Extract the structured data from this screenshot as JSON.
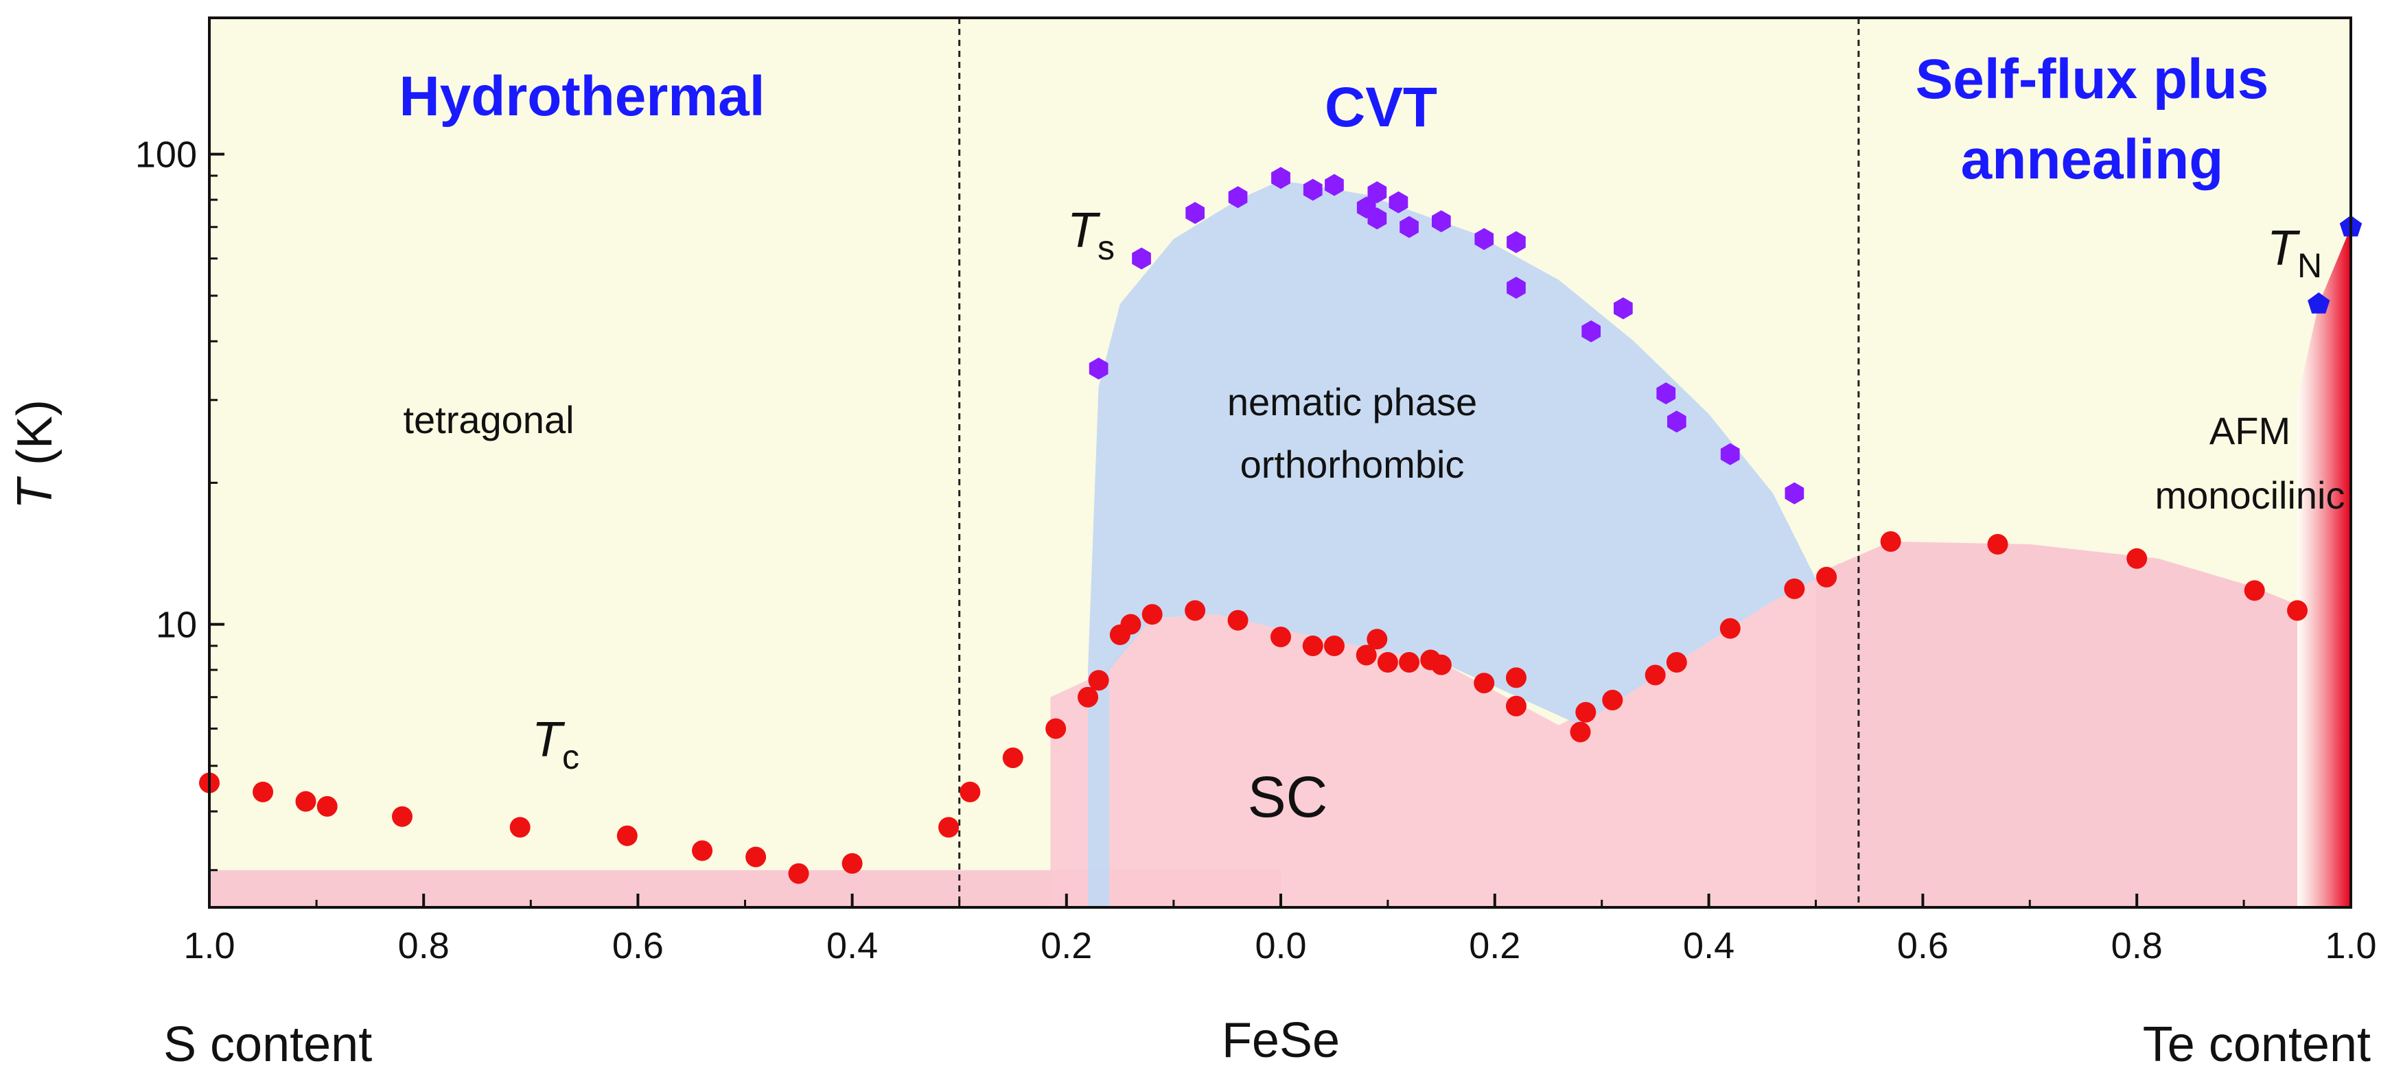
{
  "chart_data": {
    "type": "scatter",
    "y_scale": "log",
    "ylim": [
      2.5,
      195
    ],
    "ylabel": {
      "symbol": "T",
      "unit": " (K)"
    },
    "y_ticks": [
      {
        "value": 10,
        "label": "10"
      },
      {
        "value": 100,
        "label": "100"
      }
    ],
    "segments": [
      {
        "name": "S content",
        "x_label": "S content",
        "from": 1.0,
        "to": 0.0
      },
      {
        "name": "Te content",
        "x_label": "Te content",
        "from": 0.0,
        "to": 1.0
      }
    ],
    "center_label": "FeSe",
    "x_ticks": [
      {
        "segment": "S",
        "value": 1.0,
        "label": "1.0"
      },
      {
        "segment": "S",
        "value": 0.8,
        "label": "0.8"
      },
      {
        "segment": "S",
        "value": 0.6,
        "label": "0.6"
      },
      {
        "segment": "S",
        "value": 0.4,
        "label": "0.4"
      },
      {
        "segment": "S",
        "value": 0.2,
        "label": "0.2"
      },
      {
        "segment": "Te",
        "value": 0.0,
        "label": "0.0"
      },
      {
        "segment": "Te",
        "value": 0.2,
        "label": "0.2"
      },
      {
        "segment": "Te",
        "value": 0.4,
        "label": "0.4"
      },
      {
        "segment": "Te",
        "value": 0.6,
        "label": "0.6"
      },
      {
        "segment": "Te",
        "value": 0.8,
        "label": "0.8"
      },
      {
        "segment": "Te",
        "value": 1.0,
        "label": "1.0"
      }
    ],
    "dividers": [
      {
        "segment": "S",
        "value": 0.3
      },
      {
        "segment": "Te",
        "value": 0.54
      }
    ],
    "methods": [
      {
        "name": "hydrothermal",
        "lines": [
          "Hydrothermal"
        ],
        "color": "#1a1aff"
      },
      {
        "name": "cvt",
        "lines": [
          "CVT"
        ],
        "color": "#1a1aff"
      },
      {
        "name": "self-flux",
        "lines": [
          "Self-flux plus",
          "annealing"
        ],
        "color": "#1a1aff"
      }
    ],
    "phases": [
      {
        "name": "tetragonal",
        "lines": [
          "tetragonal"
        ]
      },
      {
        "name": "nematic",
        "lines": [
          "nematic phase",
          "orthorhombic"
        ]
      },
      {
        "name": "afm",
        "lines": [
          "AFM",
          "monocilinic"
        ]
      }
    ],
    "sc_label": "SC",
    "series": [
      {
        "name": "Tc",
        "label_main": "T",
        "label_sub": "c",
        "color": "#ee1111",
        "marker": "circle",
        "points": [
          {
            "segment": "S",
            "x": 1.0,
            "y": 4.6
          },
          {
            "segment": "S",
            "x": 0.95,
            "y": 4.4
          },
          {
            "segment": "S",
            "x": 0.91,
            "y": 4.2
          },
          {
            "segment": "S",
            "x": 0.89,
            "y": 4.1
          },
          {
            "segment": "S",
            "x": 0.82,
            "y": 3.9
          },
          {
            "segment": "S",
            "x": 0.71,
            "y": 3.7
          },
          {
            "segment": "S",
            "x": 0.61,
            "y": 3.55
          },
          {
            "segment": "S",
            "x": 0.54,
            "y": 3.3
          },
          {
            "segment": "S",
            "x": 0.49,
            "y": 3.2
          },
          {
            "segment": "S",
            "x": 0.45,
            "y": 2.95
          },
          {
            "segment": "S",
            "x": 0.4,
            "y": 3.1
          },
          {
            "segment": "S",
            "x": 0.31,
            "y": 3.7
          },
          {
            "segment": "S",
            "x": 0.29,
            "y": 4.4
          },
          {
            "segment": "S",
            "x": 0.25,
            "y": 5.2
          },
          {
            "segment": "S",
            "x": 0.21,
            "y": 6.0
          },
          {
            "segment": "S",
            "x": 0.18,
            "y": 7.0
          },
          {
            "segment": "S",
            "x": 0.17,
            "y": 7.6
          },
          {
            "segment": "S",
            "x": 0.15,
            "y": 9.5
          },
          {
            "segment": "S",
            "x": 0.14,
            "y": 10.0
          },
          {
            "segment": "S",
            "x": 0.12,
            "y": 10.5
          },
          {
            "segment": "S",
            "x": 0.08,
            "y": 10.7
          },
          {
            "segment": "S",
            "x": 0.04,
            "y": 10.2
          },
          {
            "segment": "Te",
            "x": 0.0,
            "y": 9.4
          },
          {
            "segment": "Te",
            "x": 0.03,
            "y": 9.0
          },
          {
            "segment": "Te",
            "x": 0.05,
            "y": 9.0
          },
          {
            "segment": "Te",
            "x": 0.08,
            "y": 8.6
          },
          {
            "segment": "Te",
            "x": 0.09,
            "y": 9.3
          },
          {
            "segment": "Te",
            "x": 0.1,
            "y": 8.3
          },
          {
            "segment": "Te",
            "x": 0.12,
            "y": 8.3
          },
          {
            "segment": "Te",
            "x": 0.14,
            "y": 8.4
          },
          {
            "segment": "Te",
            "x": 0.15,
            "y": 8.2
          },
          {
            "segment": "Te",
            "x": 0.19,
            "y": 7.5
          },
          {
            "segment": "Te",
            "x": 0.22,
            "y": 7.7
          },
          {
            "segment": "Te",
            "x": 0.22,
            "y": 6.7
          },
          {
            "segment": "Te",
            "x": 0.28,
            "y": 5.9
          },
          {
            "segment": "Te",
            "x": 0.285,
            "y": 6.5
          },
          {
            "segment": "Te",
            "x": 0.31,
            "y": 6.9
          },
          {
            "segment": "Te",
            "x": 0.35,
            "y": 7.8
          },
          {
            "segment": "Te",
            "x": 0.37,
            "y": 8.3
          },
          {
            "segment": "Te",
            "x": 0.42,
            "y": 9.8
          },
          {
            "segment": "Te",
            "x": 0.48,
            "y": 11.9
          },
          {
            "segment": "Te",
            "x": 0.51,
            "y": 12.6
          },
          {
            "segment": "Te",
            "x": 0.57,
            "y": 15.0
          },
          {
            "segment": "Te",
            "x": 0.67,
            "y": 14.8
          },
          {
            "segment": "Te",
            "x": 0.8,
            "y": 13.8
          },
          {
            "segment": "Te",
            "x": 0.91,
            "y": 11.8
          },
          {
            "segment": "Te",
            "x": 0.95,
            "y": 10.7
          }
        ]
      },
      {
        "name": "Ts",
        "label_main": "T",
        "label_sub": "s",
        "color": "#8a1cff",
        "marker": "hexagon",
        "points": [
          {
            "segment": "S",
            "x": 0.17,
            "y": 35
          },
          {
            "segment": "S",
            "x": 0.13,
            "y": 60
          },
          {
            "segment": "S",
            "x": 0.08,
            "y": 75
          },
          {
            "segment": "S",
            "x": 0.04,
            "y": 81
          },
          {
            "segment": "Te",
            "x": 0.0,
            "y": 89
          },
          {
            "segment": "Te",
            "x": 0.03,
            "y": 84
          },
          {
            "segment": "Te",
            "x": 0.05,
            "y": 86
          },
          {
            "segment": "Te",
            "x": 0.08,
            "y": 77
          },
          {
            "segment": "Te",
            "x": 0.09,
            "y": 83
          },
          {
            "segment": "Te",
            "x": 0.09,
            "y": 73
          },
          {
            "segment": "Te",
            "x": 0.11,
            "y": 79
          },
          {
            "segment": "Te",
            "x": 0.12,
            "y": 70
          },
          {
            "segment": "Te",
            "x": 0.15,
            "y": 72
          },
          {
            "segment": "Te",
            "x": 0.19,
            "y": 66
          },
          {
            "segment": "Te",
            "x": 0.22,
            "y": 65
          },
          {
            "segment": "Te",
            "x": 0.22,
            "y": 52
          },
          {
            "segment": "Te",
            "x": 0.29,
            "y": 42
          },
          {
            "segment": "Te",
            "x": 0.32,
            "y": 47
          },
          {
            "segment": "Te",
            "x": 0.36,
            "y": 31
          },
          {
            "segment": "Te",
            "x": 0.37,
            "y": 27
          },
          {
            "segment": "Te",
            "x": 0.42,
            "y": 23
          },
          {
            "segment": "Te",
            "x": 0.48,
            "y": 19
          }
        ]
      },
      {
        "name": "TN",
        "label_main": "T",
        "label_sub": "N",
        "color": "#1a1aee",
        "marker": "pentagon",
        "points": [
          {
            "segment": "Te",
            "x": 0.97,
            "y": 48
          },
          {
            "segment": "Te",
            "x": 1.0,
            "y": 70
          }
        ]
      }
    ],
    "colors": {
      "background": "#fbfae3",
      "nematic_fill": "#c4d8f2",
      "sc_fill": "#f9c9d2",
      "afm_fill": "#ee1111",
      "text": "#111111"
    }
  }
}
